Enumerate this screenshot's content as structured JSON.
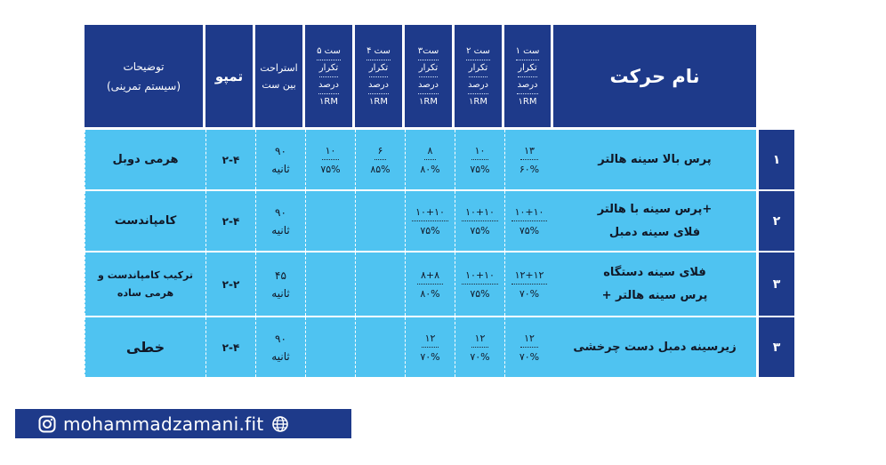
{
  "header": {
    "name": "نام حرکت",
    "sets": [
      {
        "label": "ست ۱",
        "reps": "تکرار",
        "percent": "درصد",
        "rm": "۱RM"
      },
      {
        "label": "ست ۲",
        "reps": "تکرار",
        "percent": "درصد",
        "rm": "۱RM"
      },
      {
        "label": "ست۳",
        "reps": "تکرار",
        "percent": "درصد",
        "rm": "۱RM"
      },
      {
        "label": "ست ۴",
        "reps": "تکرار",
        "percent": "درصد",
        "rm": "۱RM"
      },
      {
        "label": "ست ۵",
        "reps": "تکرار",
        "percent": "درصد",
        "rm": "۱RM"
      }
    ],
    "rest_line1": "استراحت",
    "rest_line2": "بین ست",
    "tempo": "تمپو",
    "desc_line1": "توضیحات",
    "desc_line2": "(سیستم تمرینی)"
  },
  "rows": [
    {
      "num": "۱",
      "name_lines": [
        "پرس بالا سینه هالتر"
      ],
      "sets": [
        {
          "reps": "۱۳",
          "pct": "۶۰%"
        },
        {
          "reps": "۱۰",
          "pct": "۷۵%"
        },
        {
          "reps": "۸",
          "pct": "۸۰%"
        },
        {
          "reps": "۶",
          "pct": "۸۵%"
        },
        {
          "reps": "۱۰",
          "pct": "۷۵%"
        }
      ],
      "rest_value": "۹۰",
      "rest_unit": "ثانیه",
      "tempo": "۲-۴",
      "desc_lines": [
        "هرمی دوبل"
      ]
    },
    {
      "num": "۲",
      "name_lines": [
        "پرس سینه با هالتر+",
        "فلای سینه دمبل"
      ],
      "sets": [
        {
          "reps": "۱۰+۱۰",
          "pct": "۷۵%"
        },
        {
          "reps": "۱۰+۱۰",
          "pct": "۷۵%"
        },
        {
          "reps": "۱۰+۱۰",
          "pct": "۷۵%"
        }
      ],
      "rest_value": "۹۰",
      "rest_unit": "ثانیه",
      "tempo": "۲-۴",
      "desc_lines": [
        "کامپاندست"
      ]
    },
    {
      "num": "۳",
      "name_lines": [
        "فلای سینه دستگاه",
        "+ پرس سینه هالتر"
      ],
      "sets": [
        {
          "reps": "۱۲+۱۲",
          "pct": "۷۰%"
        },
        {
          "reps": "۱۰+۱۰",
          "pct": "۷۵%"
        },
        {
          "reps": "۸+۸",
          "pct": "۸۰%"
        }
      ],
      "rest_value": "۴۵",
      "rest_unit": "ثانیه",
      "tempo": "۲-۲",
      "desc_lines": [
        "ترکیب کامپاندست و",
        "هرمی ساده"
      ]
    },
    {
      "num": "۳",
      "name_lines": [
        "زیرسینه دمبل دست چرخشی"
      ],
      "sets": [
        {
          "reps": "۱۲",
          "pct": "۷۰%"
        },
        {
          "reps": "۱۲",
          "pct": "۷۰%"
        },
        {
          "reps": "۱۲",
          "pct": "۷۰%"
        }
      ],
      "rest_value": "۹۰",
      "rest_unit": "ثانیه",
      "tempo": "۲-۴",
      "desc_lines": [
        "خطی"
      ]
    }
  ],
  "footer": {
    "handle": "mohammadzamani.fit",
    "left_icon": "instagram-icon",
    "right_icon": "globe-icon"
  },
  "colors": {
    "header_bg": "#1e3a8a",
    "row_bg": "#4fc3f1",
    "text_dark": "#111827"
  }
}
